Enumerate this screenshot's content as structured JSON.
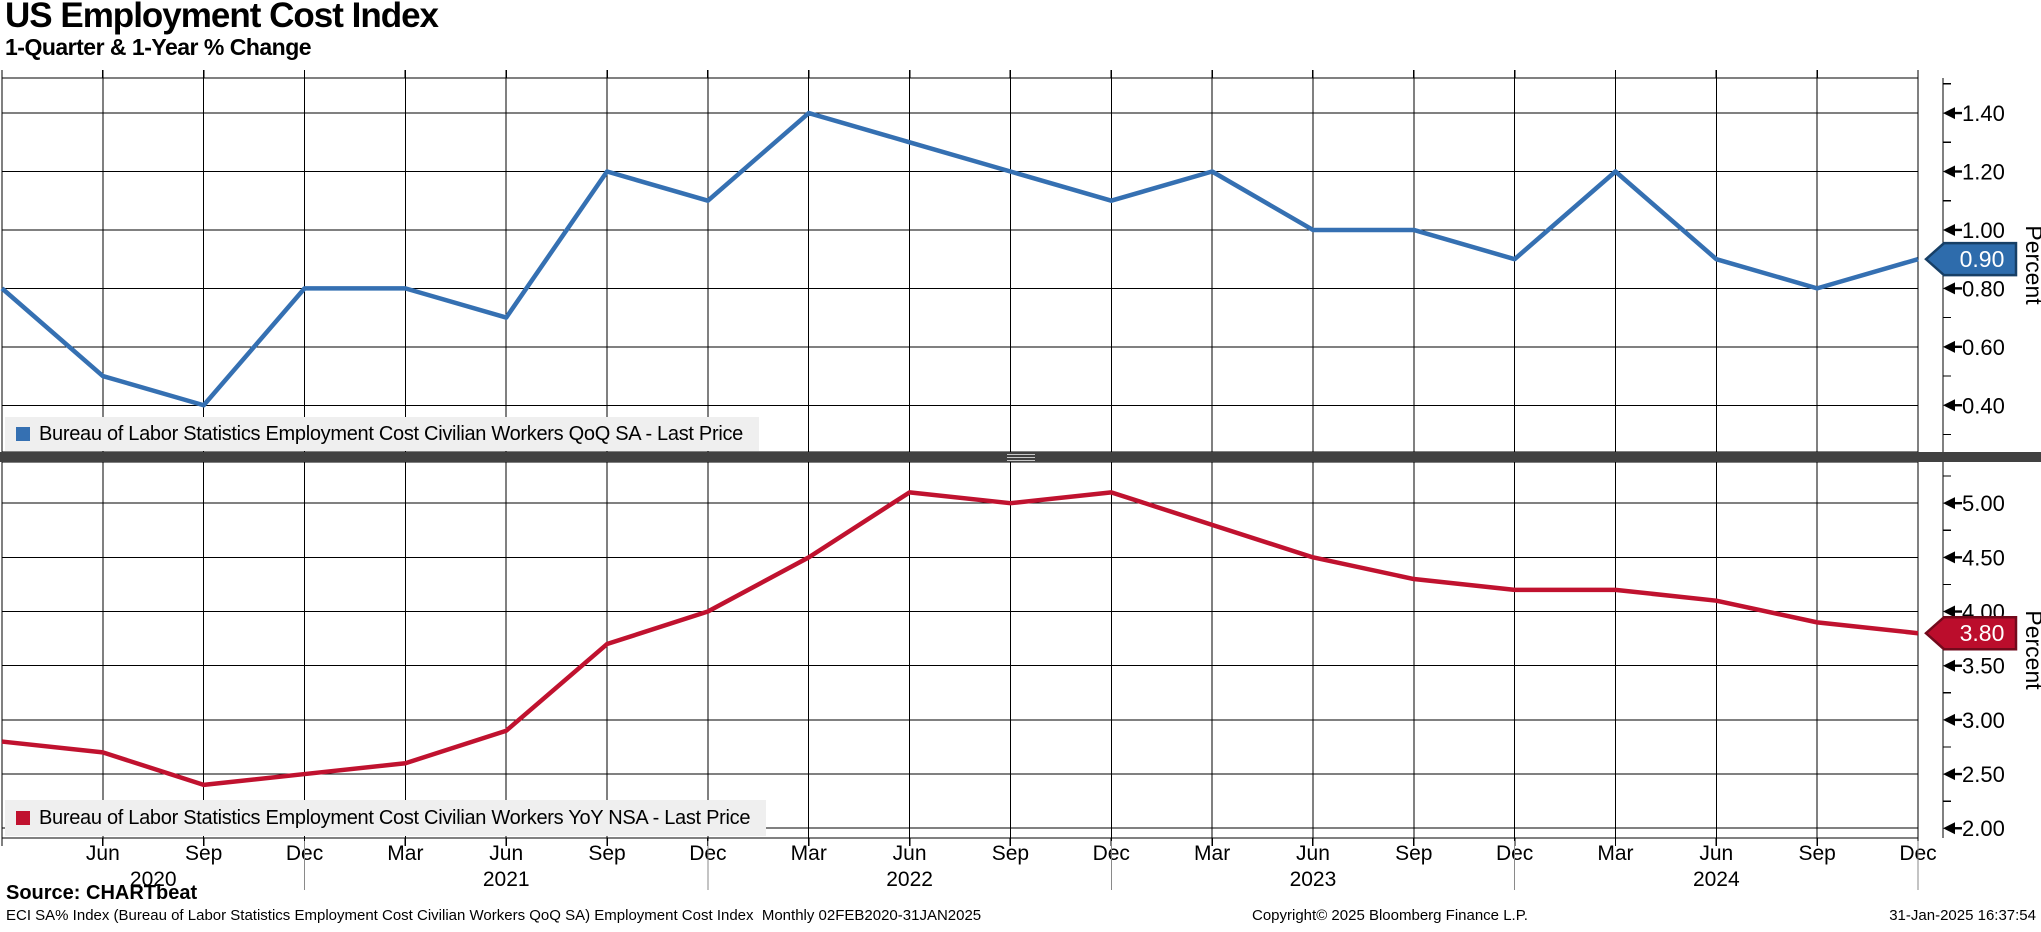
{
  "header": {
    "title": "US Employment Cost Index",
    "subtitle": "1-Quarter & 1-Year % Change"
  },
  "footer": {
    "source": "Source: CHARTbeat",
    "description": "ECI SA% Index (Bureau of Labor Statistics Employment Cost Civilian Workers QoQ SA) Employment Cost Index  Monthly 02FEB2020-31JAN2025",
    "copyright": "Copyright© 2025 Bloomberg Finance L.P.",
    "timestamp": "31-Jan-2025 16:37:54"
  },
  "chart_data": {
    "type": "line",
    "title": "US Employment Cost Index",
    "subtitle": "1-Quarter & 1-Year % Change",
    "x_unit": "quarter",
    "grid": true,
    "axis_side": "right",
    "legend_position": "bottom-left-inside",
    "periods": [
      "Mar 2020",
      "Jun 2020",
      "Sep 2020",
      "Dec 2020",
      "Mar 2021",
      "Jun 2021",
      "Sep 2021",
      "Dec 2021",
      "Mar 2022",
      "Jun 2022",
      "Sep 2022",
      "Dec 2022",
      "Mar 2023",
      "Jun 2023",
      "Sep 2023",
      "Dec 2023",
      "Mar 2024",
      "Jun 2024",
      "Sep 2024",
      "Dec 2024"
    ],
    "month_tick_labels": [
      "Jun",
      "Sep",
      "Dec",
      "Mar",
      "Jun",
      "Sep",
      "Dec",
      "Mar",
      "Jun",
      "Sep",
      "Dec",
      "Mar",
      "Jun",
      "Sep",
      "Dec",
      "Mar",
      "Jun",
      "Sep",
      "Dec"
    ],
    "year_spans": [
      {
        "label": "2020",
        "from": 0,
        "to": 3
      },
      {
        "label": "2021",
        "from": 3,
        "to": 7
      },
      {
        "label": "2022",
        "from": 7,
        "to": 11
      },
      {
        "label": "2023",
        "from": 11,
        "to": 15
      },
      {
        "label": "2024",
        "from": 15,
        "to": 19
      }
    ],
    "panels": [
      {
        "id": "qoq",
        "legend": "Bureau of Labor Statistics Employment Cost Civilian Workers QoQ SA - Last Price",
        "ylabel": "Percent",
        "color": "#3570B2",
        "badge_fill": "#2E6CAC",
        "badge_border": "#173F66",
        "last_price": "0.90",
        "ylim": [
          0.24,
          1.52
        ],
        "y_majors": [
          0.4,
          0.6,
          0.8,
          1.0,
          1.2,
          1.4
        ],
        "y_minors": [
          0.3,
          0.5,
          0.7,
          0.9,
          1.1,
          1.3,
          1.5
        ],
        "values": [
          0.8,
          0.5,
          0.4,
          0.8,
          0.8,
          0.7,
          1.2,
          1.1,
          1.4,
          1.3,
          1.2,
          1.1,
          1.2,
          1.0,
          1.0,
          0.9,
          1.2,
          0.9,
          0.8,
          0.9
        ]
      },
      {
        "id": "yoy",
        "legend": "Bureau of Labor Statistics Employment Cost Civilian Workers YoY NSA - Last Price",
        "ylabel": "Percent",
        "color": "#C0122F",
        "badge_fill": "#BB0D2C",
        "badge_border": "#720A1C",
        "last_price": "3.80",
        "ylim": [
          1.91,
          5.38
        ],
        "y_majors": [
          2.0,
          2.5,
          3.0,
          3.5,
          4.0,
          4.5,
          5.0
        ],
        "y_minors": [
          2.25,
          2.75,
          3.25,
          3.75,
          4.25,
          4.75,
          5.25
        ],
        "values": [
          2.8,
          2.7,
          2.4,
          2.5,
          2.6,
          2.9,
          3.7,
          4.0,
          4.5,
          5.1,
          5.0,
          5.1,
          4.8,
          4.5,
          4.3,
          4.2,
          4.2,
          4.1,
          3.9,
          3.8
        ]
      }
    ]
  }
}
